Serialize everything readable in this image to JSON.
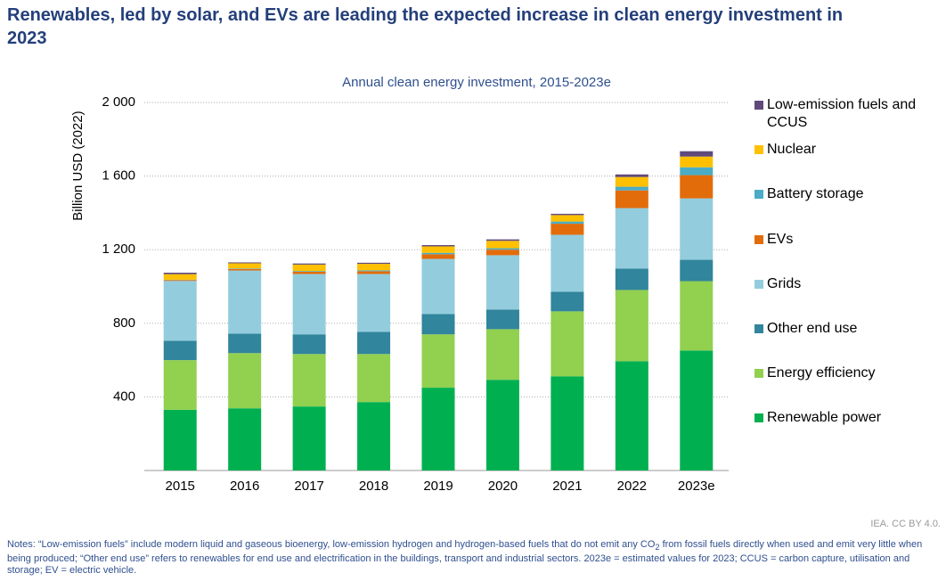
{
  "chart_data": {
    "type": "stacked_bar",
    "title": "Renewables, led by solar, and EVs are leading the expected increase in clean energy investment in 2023",
    "subtitle": "Annual clean energy investment, 2015-2023e",
    "y_label": "Billion USD (2022)",
    "categories": [
      "2015",
      "2016",
      "2017",
      "2018",
      "2019",
      "2020",
      "2021",
      "2022",
      "2023e"
    ],
    "series": [
      {
        "name": "Renewable power",
        "color": "#00b050",
        "values": [
          330,
          338,
          348,
          372,
          450,
          493,
          512,
          594,
          652
        ]
      },
      {
        "name": "Energy efficiency",
        "color": "#92d050",
        "values": [
          270,
          300,
          285,
          261,
          290,
          275,
          353,
          387,
          377
        ]
      },
      {
        "name": "Other end use",
        "color": "#31859c",
        "values": [
          105,
          106,
          107,
          121,
          111,
          107,
          106,
          116,
          116
        ]
      },
      {
        "name": "Grids",
        "color": "#93cddd",
        "values": [
          325,
          343,
          328,
          314,
          299,
          295,
          310,
          329,
          334
        ]
      },
      {
        "name": "EVs",
        "color": "#e36c0a",
        "values": [
          5,
          8,
          12,
          15,
          25,
          30,
          60,
          96,
          126
        ]
      },
      {
        "name": "Battery storage",
        "color": "#4bacc6",
        "values": [
          2,
          3,
          4,
          5,
          8,
          8,
          12,
          20,
          43
        ]
      },
      {
        "name": "Nuclear",
        "color": "#ffc000",
        "values": [
          30,
          28,
          35,
          35,
          35,
          40,
          35,
          53,
          58
        ]
      },
      {
        "name": "Low-emission fuels and CCUS",
        "color": "#604a7b",
        "values": [
          8,
          5,
          6,
          6,
          7,
          8,
          7,
          14,
          29
        ]
      }
    ],
    "ylim": [
      0,
      2000
    ],
    "yticks": [
      {
        "value": 400,
        "label": "400"
      },
      {
        "value": 800,
        "label": "800"
      },
      {
        "value": 1200,
        "label": "1 200"
      },
      {
        "value": 1600,
        "label": "1 600"
      },
      {
        "value": 2000,
        "label": "2 000"
      }
    ],
    "grid": true,
    "legend": "right",
    "credit": "IEA. CC BY 4.0.",
    "notes": [
      "Notes: “Low-emission fuels” include modern liquid and gaseous bioenergy, low-emission hydrogen and hydrogen-based fuels that do not emit any CO",
      "2",
      " from fossil fuels directly when used and emit very little when being produced; “Other end use” refers to renewables for end use and electrification in the buildings, transport and industrial sectors. 2023e = estimated values for 2023; CCUS = carbon capture, utilisation and storage; EV = electric vehicle."
    ]
  }
}
